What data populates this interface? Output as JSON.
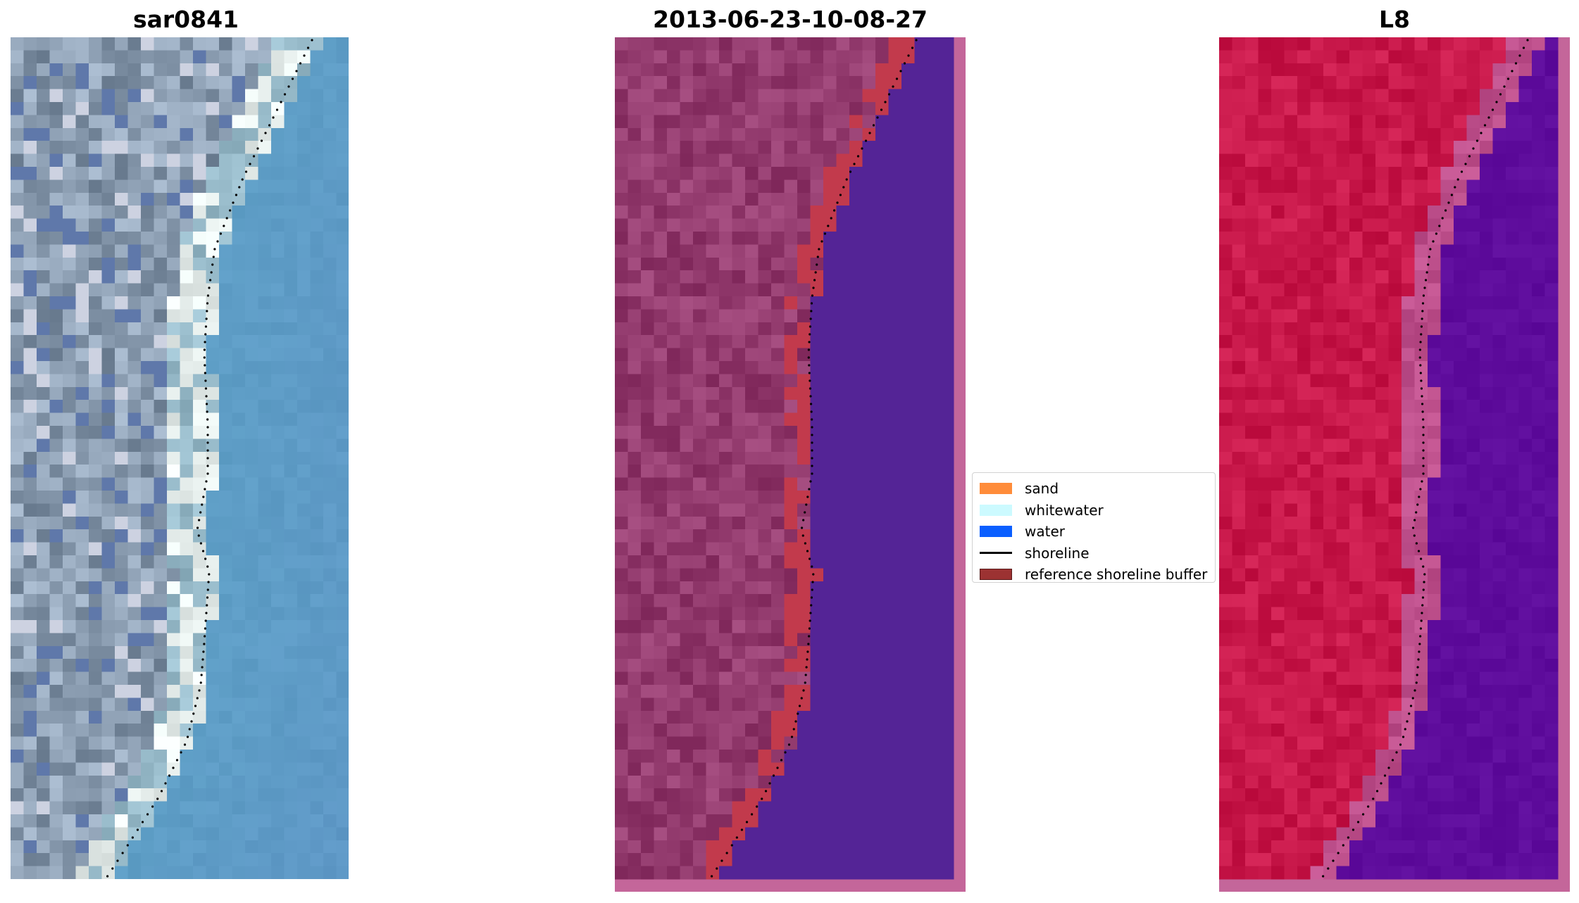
{
  "figure": {
    "panels": [
      {
        "id": "rgb",
        "title": "sar0841"
      },
      {
        "id": "classified",
        "title": "2013-06-23-10-08-27"
      },
      {
        "id": "mndwi",
        "title": "L8"
      }
    ],
    "legend": [
      {
        "label": "sand",
        "color": "#ff8c3a",
        "kind": "patch"
      },
      {
        "label": "whitewater",
        "color": "#ccfaff",
        "kind": "patch"
      },
      {
        "label": "water",
        "color": "#0a5fff",
        "kind": "patch"
      },
      {
        "label": "shoreline",
        "color": "#000000",
        "kind": "line"
      },
      {
        "label": "reference shoreline buffer",
        "color": "#9c3232",
        "edge": "#5a1a1a",
        "kind": "patch"
      }
    ],
    "colors": {
      "rgb_land": "#8a9cb0",
      "rgb_beach": "#e8f0ee",
      "rgb_sea": "#5e9ec6",
      "classified_land": "#933b6e",
      "classified_buffer": "#c23a4c",
      "classified_water": "#542496",
      "panel_border": "#c4669a",
      "index_land": "#c8184a",
      "index_water": "#5e0c9c",
      "shoreline": "#000000"
    }
  }
}
